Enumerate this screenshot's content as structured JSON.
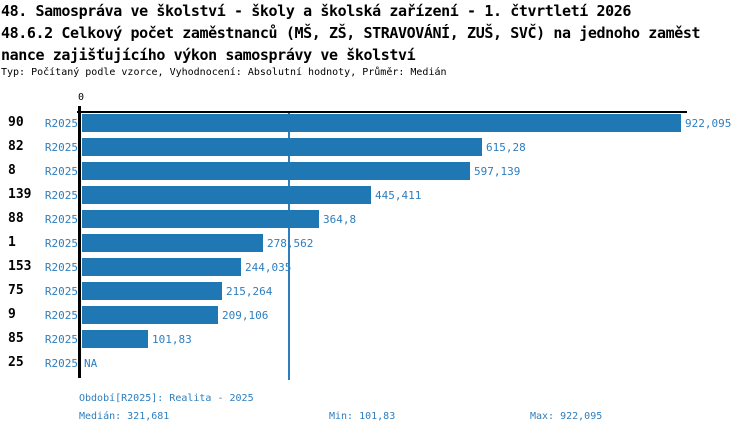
{
  "title": {
    "line1": "48. Samospráva ve školství - školy a školská zařízení - 1. čtvrtletí 2026",
    "line2": "48.6.2 Celkový počet zaměstnanců (MŠ, ZŠ, STRAVOVÁNÍ, ZUŠ, SVČ) na jednoho zaměst",
    "line3": "nance zajišťujícího výkon samosprávy ve školství",
    "meta": "Typ: Počítaný podle vzorce, Vyhodnocení: Absolutní hodnoty, Průměr: Medián"
  },
  "chart_data": {
    "type": "bar",
    "orientation": "horizontal",
    "title": "48.6.2 Celkový počet zaměstnanců (MŠ, ZŠ, STRAVOVÁNÍ, ZUŠ, SVČ) na jednoho zaměstnance zajišťujícího výkon samosprávy ve školství",
    "zero_tick_label": "0",
    "period_label": "R2025",
    "categories": [
      "90",
      "82",
      "8",
      "139",
      "88",
      "1",
      "153",
      "75",
      "9",
      "85",
      "25"
    ],
    "values": [
      922.095,
      615.28,
      597.139,
      445.411,
      364.8,
      278.562,
      244.035,
      215.264,
      209.106,
      101.83,
      null
    ],
    "value_labels": [
      "922,095",
      "615,28",
      "597,139",
      "445,411",
      "364,8",
      "278,562",
      "244,035",
      "215,264",
      "209,106",
      "101,83",
      "NA"
    ],
    "median_value": 321.681,
    "xlim": [
      0,
      931
    ],
    "grid": false,
    "legend": "none",
    "colors": {
      "bar": "#1F77B4",
      "median_line": "#2E7EBE",
      "value_text": "#2E7EBE",
      "category_text": "#000000",
      "axis": "#000000"
    }
  },
  "footer": {
    "period": "Období[R2025]: Realita - 2025",
    "median": "Medián: 321,681",
    "min": "Min: 101,83",
    "max": "Max: 922,095"
  }
}
